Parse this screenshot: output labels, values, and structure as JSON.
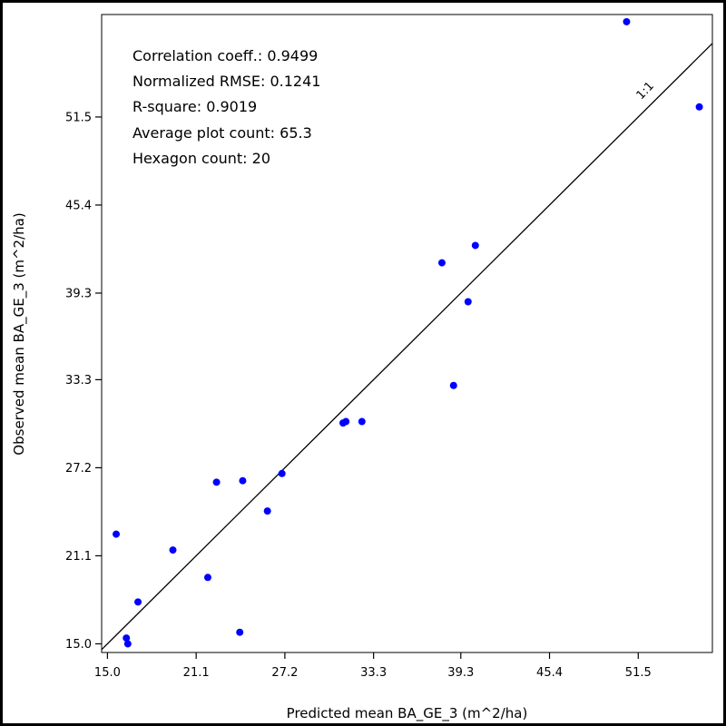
{
  "chart_data": {
    "type": "scatter",
    "xlabel": "Predicted mean BA_GE_3 (m^2/ha)",
    "ylabel": "Observed mean BA_GE_3 (m^2/ha)",
    "xlim": [
      14.6,
      56.6
    ],
    "ylim": [
      14.4,
      58.6
    ],
    "x_ticks": [
      "15.0",
      "21.1",
      "27.2",
      "33.3",
      "39.3",
      "45.4",
      "51.5"
    ],
    "y_ticks": [
      "15.0",
      "21.1",
      "27.2",
      "33.3",
      "39.3",
      "45.4",
      "51.5"
    ],
    "one_to_one_label": "1:1",
    "grid": false,
    "legend": "none",
    "point_color": "#0000ff",
    "line_color": "#000000",
    "stats": [
      "Correlation coeff.: 0.9499",
      "Normalized RMSE: 0.1241",
      "R-square: 0.9019",
      "Average plot count: 65.3",
      "Hexagon count: 20"
    ],
    "series": [
      {
        "points": [
          {
            "x": 50.7,
            "y": 58.1
          },
          {
            "x": 55.7,
            "y": 52.2
          },
          {
            "x": 40.3,
            "y": 42.6
          },
          {
            "x": 38.0,
            "y": 41.4
          },
          {
            "x": 39.8,
            "y": 38.7
          },
          {
            "x": 38.8,
            "y": 32.9
          },
          {
            "x": 32.5,
            "y": 30.4
          },
          {
            "x": 31.4,
            "y": 30.4
          },
          {
            "x": 31.2,
            "y": 30.3
          },
          {
            "x": 27.0,
            "y": 26.8
          },
          {
            "x": 24.3,
            "y": 26.3
          },
          {
            "x": 22.5,
            "y": 26.2
          },
          {
            "x": 26.0,
            "y": 24.2
          },
          {
            "x": 15.6,
            "y": 22.6
          },
          {
            "x": 19.5,
            "y": 21.5
          },
          {
            "x": 21.9,
            "y": 19.6
          },
          {
            "x": 17.1,
            "y": 17.9
          },
          {
            "x": 24.1,
            "y": 15.8
          },
          {
            "x": 16.3,
            "y": 15.4
          },
          {
            "x": 16.4,
            "y": 15.0
          }
        ]
      }
    ]
  }
}
